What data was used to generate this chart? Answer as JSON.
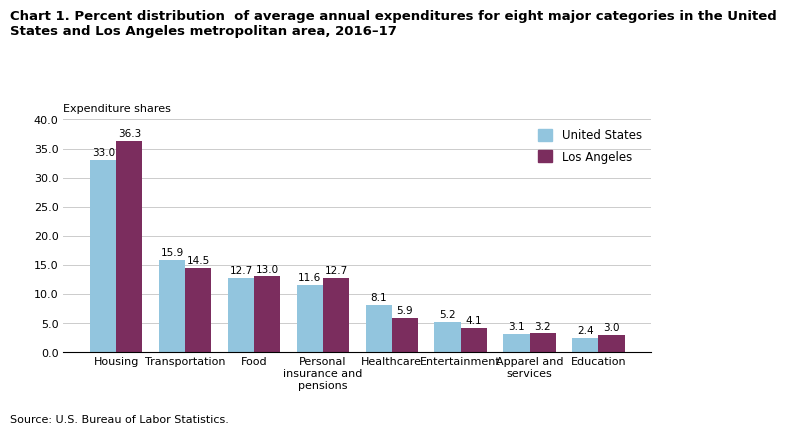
{
  "title": "Chart 1. Percent distribution  of average annual expenditures for eight major categories in the United\nStates and Los Angeles metropolitan area, 2016–17",
  "expenditure_label": "Expenditure shares",
  "source": "Source: U.S. Bureau of Labor Statistics.",
  "categories": [
    "Housing",
    "Transportation",
    "Food",
    "Personal\ninsurance and\npensions",
    "Healthcare",
    "Entertainment",
    "Apparel and\nservices",
    "Education"
  ],
  "us_values": [
    33.0,
    15.9,
    12.7,
    11.6,
    8.1,
    5.2,
    3.1,
    2.4
  ],
  "la_values": [
    36.3,
    14.5,
    13.0,
    12.7,
    5.9,
    4.1,
    3.2,
    3.0
  ],
  "us_color": "#92c5de",
  "la_color": "#7b2d5e",
  "us_label": "United States",
  "la_label": "Los Angeles",
  "ylim": [
    0,
    40.0
  ],
  "yticks": [
    0.0,
    5.0,
    10.0,
    15.0,
    20.0,
    25.0,
    30.0,
    35.0,
    40.0
  ],
  "bar_width": 0.38,
  "background_color": "#ffffff",
  "plot_bg_color": "#ffffff",
  "grid_color": "#cccccc",
  "title_fontsize": 9.5,
  "tick_fontsize": 8,
  "value_fontsize": 7.5,
  "legend_fontsize": 8.5,
  "expenditure_fontsize": 8
}
